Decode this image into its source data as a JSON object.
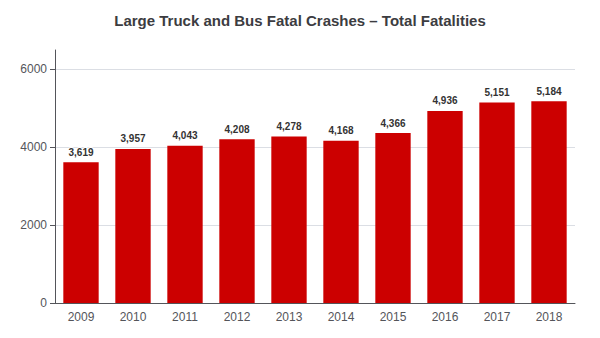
{
  "chart_data": {
    "type": "bar",
    "title": "Large Truck and Bus Fatal Crashes – Total Fatalities",
    "categories": [
      "2009",
      "2010",
      "2011",
      "2012",
      "2013",
      "2014",
      "2015",
      "2016",
      "2017",
      "2018"
    ],
    "values": [
      3619,
      3957,
      4043,
      4208,
      4278,
      4168,
      4366,
      4936,
      5151,
      5184
    ],
    "value_labels": [
      "3,619",
      "3,957",
      "4,043",
      "4,208",
      "4,278",
      "4,168",
      "4,366",
      "4,936",
      "5,151",
      "5,184"
    ],
    "data_labels": true,
    "color": "#cc0000",
    "ylim": [
      0,
      6500
    ],
    "yticks": [
      0,
      2000,
      4000,
      6000
    ],
    "grid": true
  }
}
